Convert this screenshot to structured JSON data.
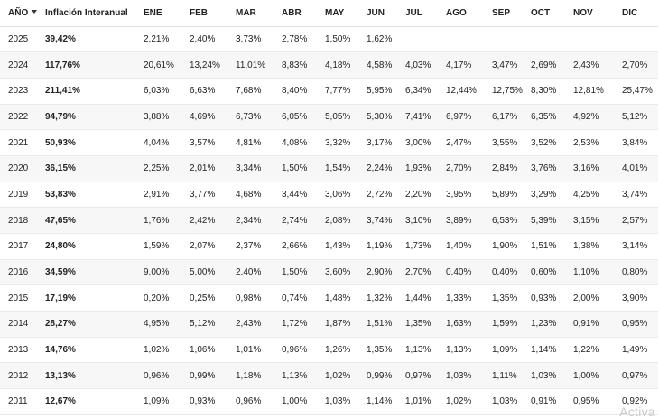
{
  "table": {
    "headers": {
      "year": "AÑO",
      "interannual": "Inflación Interanual",
      "months": [
        "ENE",
        "FEB",
        "MAR",
        "ABR",
        "MAY",
        "JUN",
        "JUL",
        "AGO",
        "SEP",
        "OCT",
        "NOV",
        "DIC"
      ]
    },
    "rows": [
      {
        "year": "2025",
        "interannual": "39,42%",
        "months": [
          "2,21%",
          "2,40%",
          "3,73%",
          "2,78%",
          "1,50%",
          "1,62%",
          "",
          "",
          "",
          "",
          "",
          ""
        ]
      },
      {
        "year": "2024",
        "interannual": "117,76%",
        "months": [
          "20,61%",
          "13,24%",
          "11,01%",
          "8,83%",
          "4,18%",
          "4,58%",
          "4,03%",
          "4,17%",
          "3,47%",
          "2,69%",
          "2,43%",
          "2,70%"
        ]
      },
      {
        "year": "2023",
        "interannual": "211,41%",
        "months": [
          "6,03%",
          "6,63%",
          "7,68%",
          "8,40%",
          "7,77%",
          "5,95%",
          "6,34%",
          "12,44%",
          "12,75%",
          "8,30%",
          "12,81%",
          "25,47%"
        ]
      },
      {
        "year": "2022",
        "interannual": "94,79%",
        "months": [
          "3,88%",
          "4,69%",
          "6,73%",
          "6,05%",
          "5,05%",
          "5,30%",
          "7,41%",
          "6,97%",
          "6,17%",
          "6,35%",
          "4,92%",
          "5,12%"
        ]
      },
      {
        "year": "2021",
        "interannual": "50,93%",
        "months": [
          "4,04%",
          "3,57%",
          "4,81%",
          "4,08%",
          "3,32%",
          "3,17%",
          "3,00%",
          "2,47%",
          "3,55%",
          "3,52%",
          "2,53%",
          "3,84%"
        ]
      },
      {
        "year": "2020",
        "interannual": "36,15%",
        "months": [
          "2,25%",
          "2,01%",
          "3,34%",
          "1,50%",
          "1,54%",
          "2,24%",
          "1,93%",
          "2,70%",
          "2,84%",
          "3,76%",
          "3,16%",
          "4,01%"
        ]
      },
      {
        "year": "2019",
        "interannual": "53,83%",
        "months": [
          "2,91%",
          "3,77%",
          "4,68%",
          "3,44%",
          "3,06%",
          "2,72%",
          "2,20%",
          "3,95%",
          "5,89%",
          "3,29%",
          "4,25%",
          "3,74%"
        ]
      },
      {
        "year": "2018",
        "interannual": "47,65%",
        "months": [
          "1,76%",
          "2,42%",
          "2,34%",
          "2,74%",
          "2,08%",
          "3,74%",
          "3,10%",
          "3,89%",
          "6,53%",
          "5,39%",
          "3,15%",
          "2,57%"
        ]
      },
      {
        "year": "2017",
        "interannual": "24,80%",
        "months": [
          "1,59%",
          "2,07%",
          "2,37%",
          "2,66%",
          "1,43%",
          "1,19%",
          "1,73%",
          "1,40%",
          "1,90%",
          "1,51%",
          "1,38%",
          "3,14%"
        ]
      },
      {
        "year": "2016",
        "interannual": "34,59%",
        "months": [
          "9,00%",
          "5,00%",
          "2,40%",
          "1,50%",
          "3,60%",
          "2,90%",
          "2,70%",
          "0,40%",
          "0,40%",
          "0,60%",
          "1,10%",
          "0,80%"
        ]
      },
      {
        "year": "2015",
        "interannual": "17,19%",
        "months": [
          "0,20%",
          "0,25%",
          "0,98%",
          "0,74%",
          "1,48%",
          "1,32%",
          "1,44%",
          "1,33%",
          "1,35%",
          "0,93%",
          "2,00%",
          "3,90%"
        ]
      },
      {
        "year": "2014",
        "interannual": "28,27%",
        "months": [
          "4,95%",
          "5,12%",
          "2,43%",
          "1,72%",
          "1,87%",
          "1,51%",
          "1,35%",
          "1,63%",
          "1,59%",
          "1,23%",
          "0,91%",
          "0,95%"
        ]
      },
      {
        "year": "2013",
        "interannual": "14,76%",
        "months": [
          "1,02%",
          "1,06%",
          "1,01%",
          "0,96%",
          "1,26%",
          "1,35%",
          "1,13%",
          "1,13%",
          "1,09%",
          "1,14%",
          "1,22%",
          "1,49%"
        ]
      },
      {
        "year": "2012",
        "interannual": "13,13%",
        "months": [
          "0,96%",
          "0,99%",
          "1,18%",
          "1,13%",
          "1,02%",
          "0,99%",
          "0,97%",
          "1,03%",
          "1,11%",
          "1,03%",
          "1,00%",
          "0,97%"
        ]
      },
      {
        "year": "2011",
        "interannual": "12,67%",
        "months": [
          "1,09%",
          "0,93%",
          "0,96%",
          "1,00%",
          "1,03%",
          "1,14%",
          "1,01%",
          "1,02%",
          "1,03%",
          "0,91%",
          "0,95%",
          "0,92%"
        ]
      }
    ]
  },
  "watermark": "Activa"
}
